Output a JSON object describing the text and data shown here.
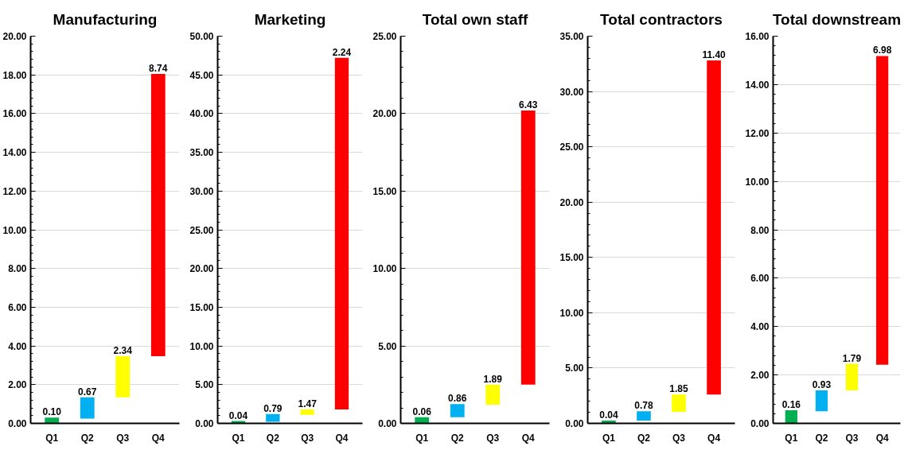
{
  "chart_data": [
    {
      "type": "bar",
      "title": "Manufacturing",
      "categories": [
        "Q1",
        "Q2",
        "Q3",
        "Q4"
      ],
      "base": [
        0,
        0.25,
        1.34,
        3.47
      ],
      "values": [
        0.3,
        1.09,
        2.13,
        14.58
      ],
      "colors": [
        "#00b050",
        "#00b0f0",
        "#ffff00",
        "#ff0000"
      ],
      "annotations": [
        {
          "text": "0.10",
          "x": "Q1",
          "y": 0.3
        },
        {
          "text": "0.67",
          "x": "Q2",
          "y": 1.34
        },
        {
          "text": "2.34",
          "x": "Q3",
          "y": 3.47
        },
        {
          "text": "8.74",
          "x": "Q4",
          "y": 18.05
        }
      ],
      "ylim": [
        0,
        20
      ],
      "yticks": [
        {
          "value": 0,
          "label": "0.00"
        },
        {
          "value": 2,
          "label": "2.00"
        },
        {
          "value": 4,
          "label": "4.00"
        },
        {
          "value": 6,
          "label": "6.00"
        },
        {
          "value": 8,
          "label": "8.00"
        },
        {
          "value": 10,
          "label": "10.00"
        },
        {
          "value": 12,
          "label": "12.00"
        },
        {
          "value": 14,
          "label": "14.00"
        },
        {
          "value": 16,
          "label": "16.00"
        },
        {
          "value": 18,
          "label": "18.00"
        },
        {
          "value": 20,
          "label": "20.00"
        }
      ],
      "grid": "y"
    },
    {
      "type": "bar",
      "title": "Marketing",
      "categories": [
        "Q1",
        "Q2",
        "Q3",
        "Q4"
      ],
      "base": [
        0,
        0.2,
        1.1,
        1.8
      ],
      "values": [
        0.3,
        1.0,
        0.7,
        45.4
      ],
      "colors": [
        "#00b050",
        "#00b0f0",
        "#ffff00",
        "#ff0000"
      ],
      "annotations": [
        {
          "text": "0.04",
          "x": "Q1",
          "y": 0.3
        },
        {
          "text": "0.79",
          "x": "Q2",
          "y": 1.2
        },
        {
          "text": "1.47",
          "x": "Q3",
          "y": 1.8
        },
        {
          "text": "2.24",
          "x": "Q4",
          "y": 47.2
        }
      ],
      "ylim": [
        0,
        50
      ],
      "yticks": [
        {
          "value": 0,
          "label": "0.00"
        },
        {
          "value": 5,
          "label": "5.00"
        },
        {
          "value": 10,
          "label": "10.00"
        },
        {
          "value": 15,
          "label": "15.00"
        },
        {
          "value": 20,
          "label": "20.00"
        },
        {
          "value": 25,
          "label": "25.00"
        },
        {
          "value": 30,
          "label": "30.00"
        },
        {
          "value": 35,
          "label": "35.00"
        },
        {
          "value": 40,
          "label": "40.00"
        },
        {
          "value": 45,
          "label": "45.00"
        },
        {
          "value": 50,
          "label": "50.00"
        }
      ],
      "grid": "y"
    },
    {
      "type": "bar",
      "title": "Total own staff",
      "categories": [
        "Q1",
        "Q2",
        "Q3",
        "Q4"
      ],
      "base": [
        0,
        0.4,
        1.2,
        2.5
      ],
      "values": [
        0.4,
        0.85,
        1.3,
        17.7
      ],
      "colors": [
        "#00b050",
        "#00b0f0",
        "#ffff00",
        "#ff0000"
      ],
      "annotations": [
        {
          "text": "0.06",
          "x": "Q1",
          "y": 0.4
        },
        {
          "text": "0.86",
          "x": "Q2",
          "y": 1.25
        },
        {
          "text": "1.89",
          "x": "Q3",
          "y": 2.5
        },
        {
          "text": "6.43",
          "x": "Q4",
          "y": 20.2
        }
      ],
      "ylim": [
        0,
        25
      ],
      "yticks": [
        {
          "value": 0,
          "label": "0.00"
        },
        {
          "value": 5,
          "label": "5.00"
        },
        {
          "value": 10,
          "label": "10.00"
        },
        {
          "value": 15,
          "label": "15.00"
        },
        {
          "value": 20,
          "label": "20.00"
        },
        {
          "value": 25,
          "label": "25.00"
        }
      ],
      "grid": "y"
    },
    {
      "type": "bar",
      "title": "Total contractors",
      "categories": [
        "Q1",
        "Q2",
        "Q3",
        "Q4"
      ],
      "base": [
        0,
        0.25,
        1.05,
        2.6
      ],
      "values": [
        0.25,
        0.85,
        1.55,
        30.2
      ],
      "colors": [
        "#00b050",
        "#00b0f0",
        "#ffff00",
        "#ff0000"
      ],
      "annotations": [
        {
          "text": "0.04",
          "x": "Q1",
          "y": 0.25
        },
        {
          "text": "0.78",
          "x": "Q2",
          "y": 1.1
        },
        {
          "text": "1.85",
          "x": "Q3",
          "y": 2.6
        },
        {
          "text": "11.40",
          "x": "Q4",
          "y": 32.8
        }
      ],
      "ylim": [
        0,
        35
      ],
      "yticks": [
        {
          "value": 0,
          "label": "0.00"
        },
        {
          "value": 5,
          "label": "5.00"
        },
        {
          "value": 10,
          "label": "10.00"
        },
        {
          "value": 15,
          "label": "15.00"
        },
        {
          "value": 20,
          "label": "20.00"
        },
        {
          "value": 25,
          "label": "25.00"
        },
        {
          "value": 30,
          "label": "30.00"
        },
        {
          "value": 35,
          "label": "35.00"
        }
      ],
      "grid": "y"
    },
    {
      "type": "bar",
      "title": "Total downstream",
      "categories": [
        "Q1",
        "Q2",
        "Q3",
        "Q4"
      ],
      "base": [
        0,
        0.5,
        1.36,
        2.42
      ],
      "values": [
        0.54,
        0.86,
        1.1,
        12.76
      ],
      "colors": [
        "#00b050",
        "#00b0f0",
        "#ffff00",
        "#ff0000"
      ],
      "annotations": [
        {
          "text": "0.16",
          "x": "Q1",
          "y": 0.54
        },
        {
          "text": "0.93",
          "x": "Q2",
          "y": 1.36
        },
        {
          "text": "1.79",
          "x": "Q3",
          "y": 2.46
        },
        {
          "text": "6.98",
          "x": "Q4",
          "y": 15.18
        }
      ],
      "ylim": [
        0,
        16
      ],
      "yticks": [
        {
          "value": 0,
          "label": "0.00"
        },
        {
          "value": 2,
          "label": "2.00"
        },
        {
          "value": 4,
          "label": "4.00"
        },
        {
          "value": 6,
          "label": "6.00"
        },
        {
          "value": 8,
          "label": "8.00"
        },
        {
          "value": 10,
          "label": "10.00"
        },
        {
          "value": 12,
          "label": "12.00"
        },
        {
          "value": 14,
          "label": "14.00"
        },
        {
          "value": 16,
          "label": "16.00"
        }
      ],
      "grid": "y"
    }
  ]
}
